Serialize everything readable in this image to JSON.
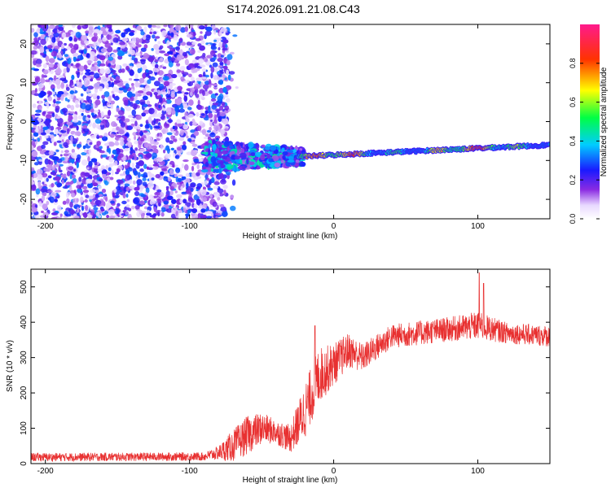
{
  "title": "S174.2026.091.21.08.C43",
  "chart_data": [
    {
      "type": "heatmap",
      "xlabel": "Height of straight line (km)",
      "ylabel": "Frequency (Hz)",
      "xlim": [
        -210,
        150
      ],
      "ylim": [
        -25,
        25
      ],
      "xticks": [
        -200,
        -100,
        0,
        100
      ],
      "yticks": [
        -20,
        -10,
        0,
        10,
        20
      ],
      "colorbar": {
        "label": "Normalized spectral amplitude",
        "range": [
          0,
          1
        ],
        "ticks": [
          0.0,
          0.2,
          0.4,
          0.6,
          0.8
        ],
        "tick_labels": [
          "0.0",
          "0.2",
          "0.4",
          "0.6",
          "0.8"
        ],
        "colormap": "rainbow (white -> violet -> blue -> cyan -> green -> yellow -> red -> magenta)"
      },
      "features": [
        {
          "region": "noise",
          "x_range": [
            -210,
            -75
          ],
          "freq_range": [
            -25,
            25
          ],
          "amplitude": "0.05-0.25"
        },
        {
          "region": "transition",
          "x_range": [
            -90,
            -20
          ],
          "freq_center": -9,
          "freq_spread": 4,
          "amplitude": "0.2-0.45"
        },
        {
          "region": "tone",
          "x_range": [
            -25,
            150
          ],
          "freq_start": -9,
          "freq_end": -6,
          "amplitude": "0.4-0.95"
        }
      ]
    },
    {
      "type": "line",
      "xlabel": "Height of straight line (km)",
      "ylabel": "SNR (10 * v/v)",
      "xlim": [
        -210,
        150
      ],
      "ylim": [
        0,
        550
      ],
      "xticks": [
        -200,
        -100,
        0,
        100
      ],
      "yticks": [
        0,
        100,
        200,
        300,
        400,
        500
      ],
      "color": "#e83030",
      "series_profile": {
        "x": [
          -210,
          -90,
          -80,
          -70,
          -60,
          -50,
          -40,
          -30,
          -20,
          -10,
          0,
          10,
          20,
          40,
          60,
          80,
          100,
          120,
          150
        ],
        "y_mean": [
          18,
          20,
          30,
          50,
          80,
          100,
          90,
          70,
          150,
          250,
          280,
          320,
          300,
          360,
          370,
          380,
          390,
          370,
          360
        ],
        "y_spread": [
          12,
          12,
          20,
          45,
          55,
          45,
          35,
          40,
          80,
          80,
          60,
          50,
          40,
          35,
          35,
          35,
          40,
          30,
          30
        ]
      },
      "spikes": [
        {
          "x": -13,
          "y": 390
        },
        {
          "x": 101,
          "y": 540
        },
        {
          "x": 104,
          "y": 510
        }
      ]
    }
  ]
}
